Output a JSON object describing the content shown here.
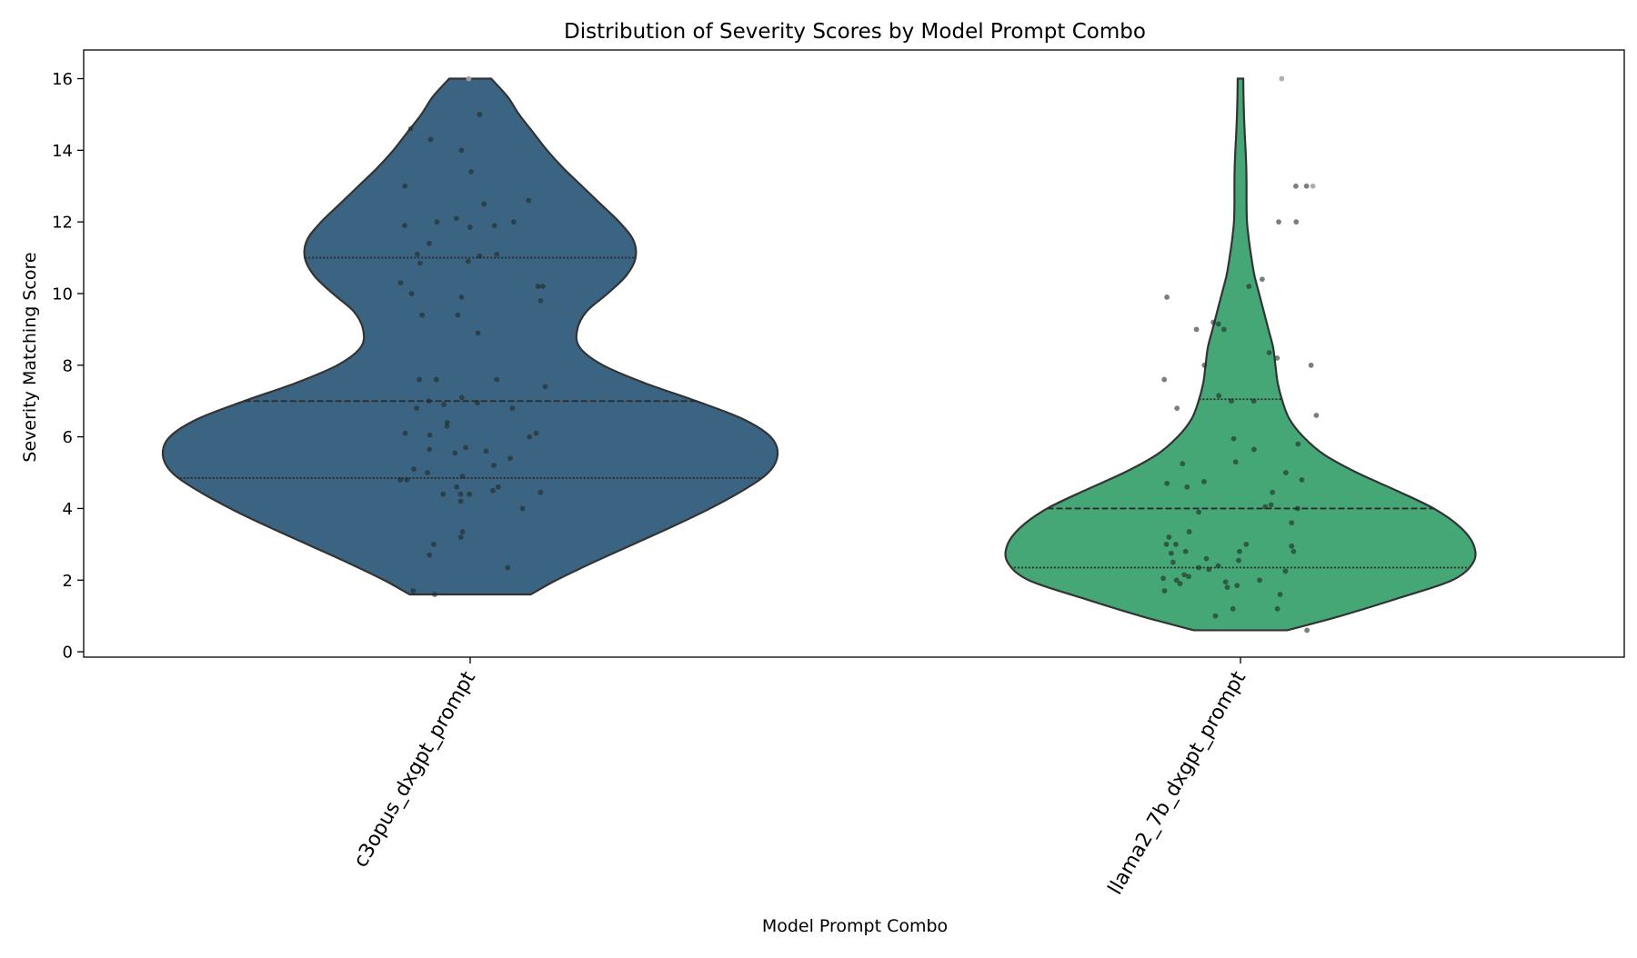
{
  "chart_data": {
    "type": "violin",
    "title": "Distribution of Severity Scores by Model Prompt Combo",
    "xlabel": "Model Prompt Combo",
    "ylabel": "Severity Matching Score",
    "ylim": [
      -0.15,
      16.8
    ],
    "yticks": [
      0,
      2,
      4,
      6,
      8,
      10,
      12,
      14,
      16
    ],
    "grid": false,
    "inner": "quartile",
    "points_overlay": "jittered strip",
    "categories": [
      "c3opus_dxgpt_prompt",
      "llama2_7b_dxgpt_prompt"
    ],
    "series": [
      {
        "category": "c3opus_dxgpt_prompt",
        "color": "#3b6482",
        "min": 1.6,
        "max": 16,
        "quartiles": [
          4.85,
          7.0,
          11.0
        ],
        "density_profile": [
          [
            1.6,
            0.26
          ],
          [
            2.0,
            0.37
          ],
          [
            2.5,
            0.53
          ],
          [
            3.0,
            0.7
          ],
          [
            3.5,
            0.87
          ],
          [
            4.0,
            1.03
          ],
          [
            4.5,
            1.17
          ],
          [
            5.0,
            1.28
          ],
          [
            5.5,
            1.32
          ],
          [
            6.0,
            1.29
          ],
          [
            6.5,
            1.17
          ],
          [
            7.0,
            0.97
          ],
          [
            7.5,
            0.75
          ],
          [
            8.0,
            0.57
          ],
          [
            8.5,
            0.47
          ],
          [
            9.0,
            0.46
          ],
          [
            9.5,
            0.5
          ],
          [
            10.0,
            0.59
          ],
          [
            10.5,
            0.67
          ],
          [
            11.0,
            0.71
          ],
          [
            11.5,
            0.7
          ],
          [
            12.0,
            0.64
          ],
          [
            12.5,
            0.56
          ],
          [
            13.0,
            0.48
          ],
          [
            13.5,
            0.4
          ],
          [
            14.0,
            0.33
          ],
          [
            14.5,
            0.27
          ],
          [
            15.0,
            0.21
          ],
          [
            15.5,
            0.16
          ],
          [
            16.0,
            0.09
          ]
        ],
        "points": [
          16.0,
          15.0,
          14.6,
          14.3,
          14.0,
          13.4,
          13.0,
          12.6,
          12.5,
          12.1,
          12.0,
          12.0,
          11.9,
          11.9,
          11.85,
          11.4,
          11.1,
          11.1,
          11.05,
          10.9,
          10.85,
          10.3,
          10.2,
          10.2,
          10.0,
          9.9,
          9.8,
          9.4,
          9.4,
          8.9,
          7.6,
          7.6,
          7.6,
          7.4,
          7.1,
          7.0,
          6.95,
          6.9,
          6.8,
          6.8,
          6.4,
          6.3,
          6.1,
          6.1,
          6.05,
          6.0,
          5.7,
          5.65,
          5.6,
          5.55,
          5.4,
          5.2,
          5.1,
          5.0,
          4.9,
          4.8,
          4.8,
          4.6,
          4.6,
          4.5,
          4.45,
          4.4,
          4.4,
          4.4,
          4.2,
          4.0,
          3.35,
          3.2,
          3.0,
          2.7,
          2.35,
          1.7,
          1.6
        ]
      },
      {
        "category": "llama2_7b_dxgpt_prompt",
        "color": "#45a676",
        "min": 0.6,
        "max": 16,
        "quartiles": [
          2.35,
          4.0,
          7.05
        ],
        "density_profile": [
          [
            0.6,
            0.2
          ],
          [
            1.0,
            0.43
          ],
          [
            1.5,
            0.68
          ],
          [
            2.0,
            0.91
          ],
          [
            2.5,
            1.0
          ],
          [
            3.0,
            1.0
          ],
          [
            3.5,
            0.94
          ],
          [
            4.0,
            0.83
          ],
          [
            4.5,
            0.67
          ],
          [
            5.0,
            0.5
          ],
          [
            5.5,
            0.36
          ],
          [
            6.0,
            0.27
          ],
          [
            6.5,
            0.21
          ],
          [
            7.0,
            0.18
          ],
          [
            7.5,
            0.16
          ],
          [
            8.0,
            0.15
          ],
          [
            8.5,
            0.14
          ],
          [
            9.0,
            0.12
          ],
          [
            9.5,
            0.1
          ],
          [
            10.0,
            0.08
          ],
          [
            10.5,
            0.06
          ],
          [
            11.0,
            0.047
          ],
          [
            11.5,
            0.036
          ],
          [
            12.0,
            0.028
          ],
          [
            12.5,
            0.026
          ],
          [
            13.0,
            0.026
          ],
          [
            13.5,
            0.025
          ],
          [
            14.0,
            0.022
          ],
          [
            14.5,
            0.018
          ],
          [
            15.0,
            0.015
          ],
          [
            15.5,
            0.013
          ],
          [
            16.0,
            0.012
          ]
        ],
        "points": [
          16.0,
          13.0,
          13.0,
          13.0,
          12.0,
          12.0,
          10.4,
          10.2,
          9.9,
          9.2,
          9.15,
          9.0,
          9.0,
          8.35,
          8.2,
          8.0,
          8.0,
          7.6,
          7.15,
          7.0,
          7.0,
          6.8,
          6.6,
          5.95,
          5.8,
          5.65,
          5.3,
          5.25,
          5.0,
          4.8,
          4.75,
          4.7,
          4.6,
          4.45,
          4.1,
          4.05,
          4.0,
          3.9,
          3.6,
          3.35,
          3.2,
          3.0,
          3.0,
          3.0,
          2.95,
          2.8,
          2.8,
          2.8,
          2.75,
          2.6,
          2.55,
          2.5,
          2.4,
          2.35,
          2.3,
          2.25,
          2.15,
          2.1,
          2.05,
          2.0,
          2.0,
          1.95,
          1.9,
          1.85,
          1.8,
          1.7,
          1.6,
          1.2,
          1.2,
          1.0,
          0.6
        ]
      }
    ]
  }
}
